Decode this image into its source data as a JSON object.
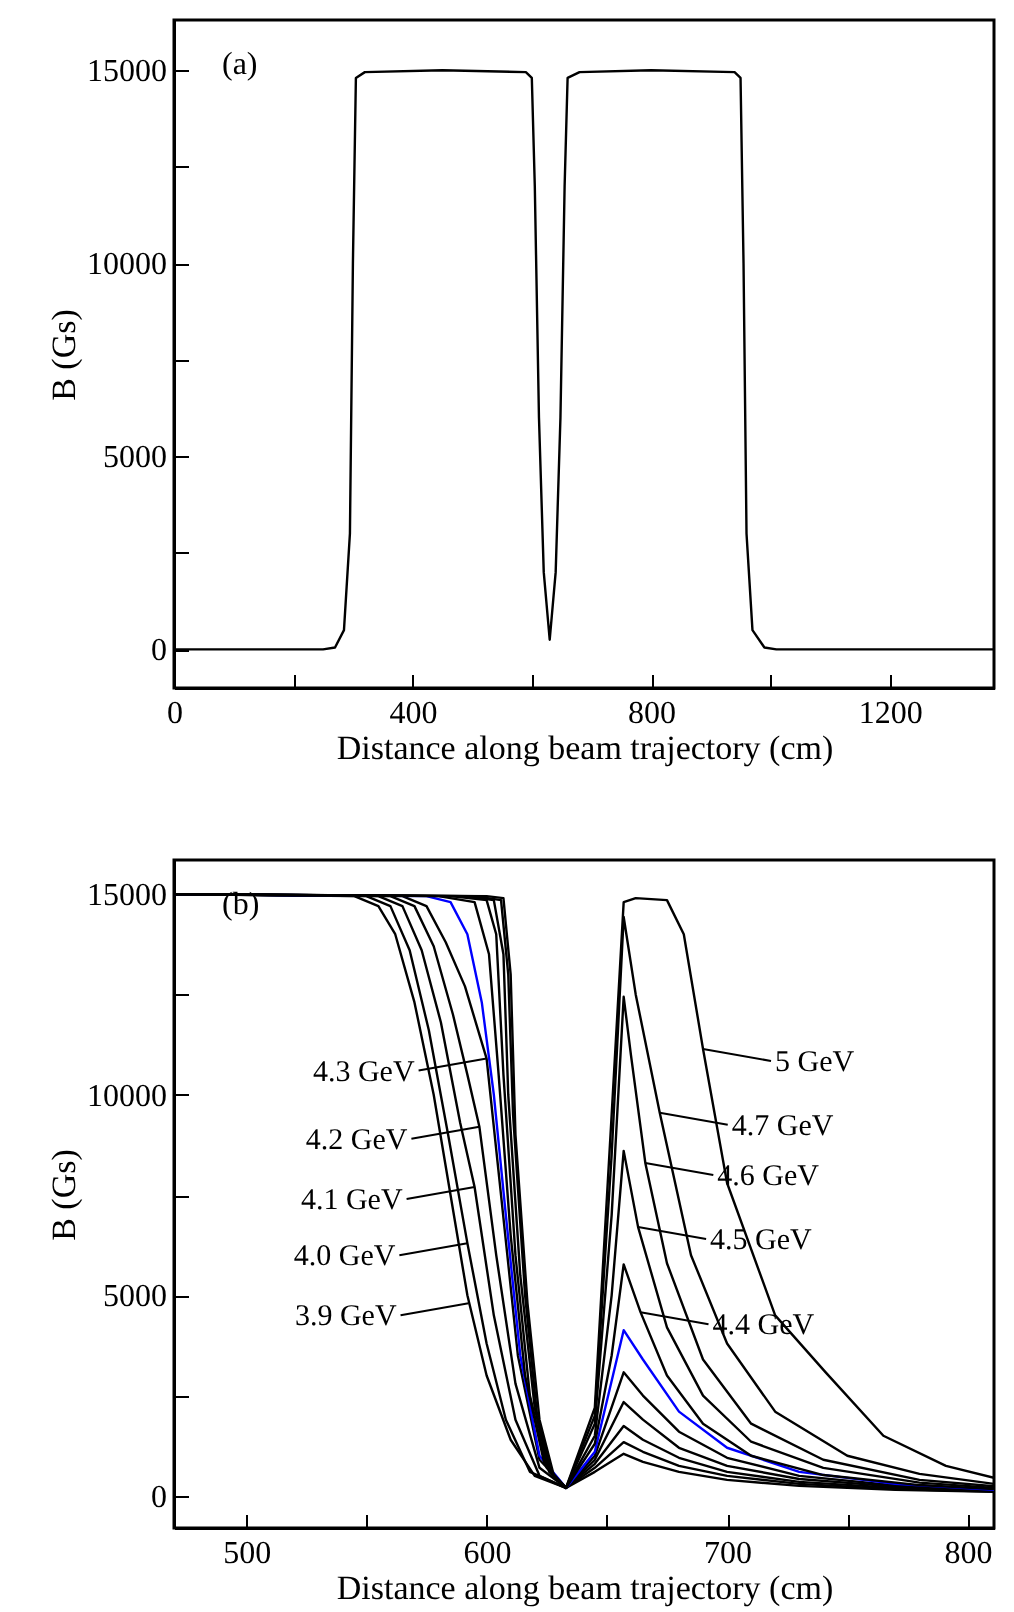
{
  "chart_data": [
    {
      "type": "line",
      "xlabel": "Distance along beam trajectory (cm)",
      "ylabel": "B (Gs)",
      "xlim": [
        0,
        1375
      ],
      "ylim": [
        -1000,
        16300
      ],
      "xticks": [
        0,
        {
          "value": 200,
          "label": null
        },
        400,
        {
          "value": 600,
          "label": null
        },
        800,
        {
          "value": 1000,
          "label": null
        },
        1200
      ],
      "yticks": [
        0,
        {
          "value": 2500,
          "label": null
        },
        5000,
        {
          "value": 7500,
          "label": null
        },
        10000,
        {
          "value": 12500,
          "label": null
        },
        15000
      ],
      "annotations": [
        "(a)"
      ],
      "series": [
        {
          "color": "#000000",
          "x": [
            0,
            250,
            270,
            285,
            295,
            300,
            305,
            320,
            450,
            590,
            600,
            605,
            612,
            620,
            630,
            640,
            648,
            655,
            660,
            680,
            800,
            940,
            950,
            955,
            960,
            970,
            990,
            1010,
            1375
          ],
          "values": [
            0,
            0,
            50,
            500,
            3000,
            10000,
            14800,
            14950,
            15000,
            14950,
            14800,
            12000,
            6000,
            2000,
            250,
            2000,
            6000,
            12000,
            14800,
            14950,
            15000,
            14950,
            14800,
            10000,
            3000,
            500,
            50,
            0,
            0
          ]
        }
      ]
    },
    {
      "type": "line",
      "xlabel": "Distance along beam trajectory (cm)",
      "ylabel": "B (Gs)",
      "xlim": [
        470,
        811
      ],
      "ylim": [
        -800,
        15850
      ],
      "xticks": [
        500,
        {
          "value": 550,
          "label": null
        },
        600,
        {
          "value": 650,
          "label": null
        },
        700,
        {
          "value": 750,
          "label": null
        },
        800
      ],
      "yticks": [
        0,
        {
          "value": 2500,
          "label": null
        },
        5000,
        {
          "value": 7500,
          "label": null
        },
        10000,
        {
          "value": 12500,
          "label": null
        },
        15000
      ],
      "annotations": [
        "(b)",
        {
          "text": "3.9 GeV",
          "x": 592.5,
          "y": 4800
        },
        {
          "text": "4.0 GeV",
          "x": 592,
          "y": 6300
        },
        {
          "text": "4.1 GeV",
          "x": 595,
          "y": 7700
        },
        {
          "text": "4.2 GeV",
          "x": 597,
          "y": 9200
        },
        {
          "text": "4.3 GeV",
          "x": 600,
          "y": 10900
        },
        {
          "text": "4.4 GeV",
          "x": 664,
          "y": 4580
        },
        {
          "text": "4.5 GeV",
          "x": 663,
          "y": 6700
        },
        {
          "text": "4.6 GeV",
          "x": 666,
          "y": 8300
        },
        {
          "text": "4.7 GeV",
          "x": 672,
          "y": 9550
        },
        {
          "text": "5 GeV",
          "x": 690,
          "y": 11140
        }
      ],
      "series": [
        {
          "color": "#000000",
          "x": [
            470,
            545,
            555,
            562,
            570,
            578,
            585,
            592,
            600,
            610,
            620,
            633,
            645,
            657,
            665,
            680,
            700,
            730,
            770,
            811
          ],
          "values": [
            15000,
            14950,
            14700,
            14000,
            12300,
            10000,
            7500,
            5000,
            3000,
            1400,
            500,
            200,
            600,
            1050,
            850,
            600,
            400,
            250,
            150,
            100
          ]
        },
        {
          "color": "#000000",
          "x": [
            470,
            550,
            560,
            568,
            576,
            584,
            592,
            600,
            608,
            618,
            633,
            645,
            657,
            665,
            680,
            700,
            730,
            770,
            811
          ],
          "values": [
            15000,
            14950,
            14700,
            13600,
            11600,
            9000,
            6300,
            3800,
            1900,
            600,
            200,
            700,
            1340,
            1100,
            750,
            500,
            300,
            170,
            110
          ]
        },
        {
          "color": "#000000",
          "x": [
            470,
            555,
            565,
            573,
            581,
            589,
            595,
            603,
            612,
            622,
            633,
            645,
            657,
            665,
            680,
            700,
            730,
            770,
            811
          ],
          "values": [
            15000,
            14950,
            14700,
            13600,
            11800,
            9300,
            7700,
            4500,
            1900,
            500,
            200,
            800,
            1740,
            1400,
            950,
            600,
            350,
            200,
            120
          ]
        },
        {
          "color": "#000000",
          "x": [
            470,
            560,
            570,
            578,
            586,
            592,
            597,
            604,
            612,
            622,
            633,
            645,
            657,
            665,
            680,
            700,
            730,
            770,
            811
          ],
          "values": [
            15000,
            14950,
            14700,
            13700,
            12000,
            10500,
            9200,
            6000,
            2800,
            700,
            200,
            900,
            2340,
            1900,
            1200,
            750,
            420,
            230,
            130
          ]
        },
        {
          "color": "#000000",
          "x": [
            470,
            565,
            575,
            583,
            591,
            600,
            606,
            613,
            622,
            633,
            645,
            657,
            665,
            680,
            700,
            730,
            770,
            811
          ],
          "values": [
            15000,
            14950,
            14700,
            13800,
            12700,
            10900,
            7500,
            3500,
            900,
            200,
            1000,
            3080,
            2500,
            1600,
            950,
            500,
            260,
            140
          ]
        },
        {
          "color": "#0000ff",
          "x": [
            470,
            575,
            585,
            592,
            598,
            603,
            608,
            614,
            622,
            633,
            645,
            657,
            665,
            680,
            700,
            730,
            770,
            811
          ],
          "values": [
            15000,
            14950,
            14800,
            14000,
            12300,
            10000,
            7000,
            3500,
            1000,
            200,
            1100,
            4130,
            3400,
            2100,
            1200,
            600,
            300,
            150
          ]
        },
        {
          "color": "#000000",
          "x": [
            470,
            580,
            595,
            601,
            605,
            610,
            616,
            624,
            633,
            645,
            652,
            657,
            664,
            675,
            690,
            710,
            740,
            780,
            811
          ],
          "values": [
            15000,
            14950,
            14800,
            13500,
            10500,
            6500,
            3000,
            800,
            200,
            1300,
            3500,
            5770,
            4580,
            3000,
            1800,
            1000,
            520,
            270,
            170
          ]
        },
        {
          "color": "#000000",
          "x": [
            470,
            585,
            600,
            604,
            607,
            612,
            618,
            625,
            633,
            645,
            652,
            657,
            663,
            675,
            690,
            710,
            740,
            780,
            811
          ],
          "values": [
            15000,
            14950,
            14850,
            14000,
            10500,
            6000,
            2500,
            700,
            200,
            1500,
            5000,
            8600,
            6700,
            4200,
            2500,
            1350,
            700,
            330,
            200
          ]
        },
        {
          "color": "#000000",
          "x": [
            470,
            590,
            603,
            607,
            609,
            614,
            620,
            626,
            633,
            645,
            652,
            657,
            660,
            666,
            675,
            690,
            710,
            740,
            780,
            811
          ],
          "values": [
            15000,
            14950,
            14850,
            13500,
            10000,
            5500,
            2200,
            600,
            200,
            1800,
            7000,
            12440,
            11000,
            8300,
            5800,
            3400,
            1800,
            900,
            400,
            240
          ]
        },
        {
          "color": "#000000",
          "x": [
            470,
            595,
            606,
            609,
            611,
            616,
            621,
            627,
            633,
            645,
            652,
            657,
            662,
            672,
            685,
            700,
            720,
            750,
            780,
            811
          ],
          "values": [
            15000,
            14950,
            14850,
            13000,
            9500,
            5000,
            2000,
            550,
            200,
            2000,
            8500,
            14430,
            12500,
            9550,
            6000,
            3800,
            2100,
            1000,
            550,
            300
          ]
        },
        {
          "color": "#000000",
          "x": [
            470,
            600,
            607,
            610,
            612,
            617,
            622,
            628,
            633,
            645,
            652,
            657,
            662,
            675,
            682,
            690,
            700,
            720,
            741,
            765,
            791,
            811
          ],
          "values": [
            15000,
            14950,
            14900,
            13000,
            9000,
            4800,
            1900,
            500,
            200,
            2200,
            9500,
            14800,
            14900,
            14850,
            14000,
            11140,
            7800,
            4500,
            3080,
            1500,
            750,
            450
          ]
        }
      ]
    }
  ]
}
